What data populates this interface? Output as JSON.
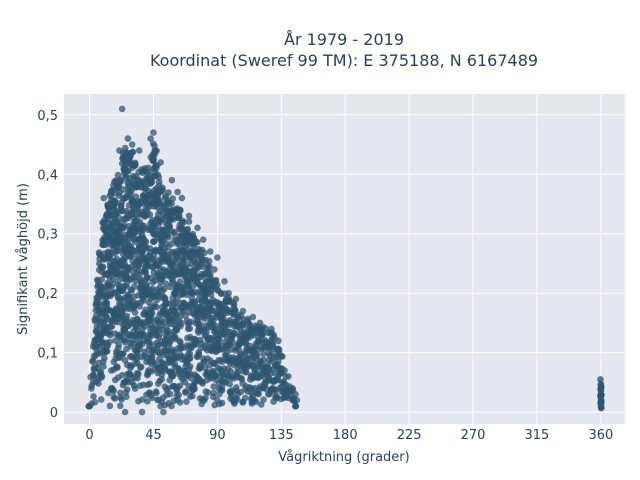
{
  "chart_data": {
    "type": "scatter",
    "title_line1": "År 1979 - 2019",
    "title_line2": "Koordinat (Sweref 99 TM): E 375188, N 6167489",
    "xlabel": "Vågriktning (grader)",
    "ylabel": "Signifikant våghöjd (m)",
    "xlim": [
      -18,
      377
    ],
    "ylim": [
      -0.02,
      0.535
    ],
    "x_ticks": [
      0,
      45,
      90,
      135,
      180,
      225,
      270,
      315,
      360
    ],
    "x_tick_labels": [
      "0",
      "45",
      "90",
      "135",
      "180",
      "225",
      "270",
      "315",
      "360"
    ],
    "y_ticks": [
      0,
      0.1,
      0.2,
      0.3,
      0.4,
      0.5
    ],
    "y_tick_labels": [
      "0",
      "0,1",
      "0,2",
      "0,3",
      "0,4",
      "0,5"
    ],
    "grid": true,
    "marker_color": "#2f5670",
    "plot_bg": "#e5e8f1",
    "envelope_note_points": [
      {
        "x": 0,
        "y": 0.01
      },
      {
        "x": 5,
        "y": 0.22
      },
      {
        "x": 10,
        "y": 0.33
      },
      {
        "x": 15,
        "y": 0.37
      },
      {
        "x": 20,
        "y": 0.41
      },
      {
        "x": 25,
        "y": 0.45
      },
      {
        "x": 30,
        "y": 0.44
      },
      {
        "x": 35,
        "y": 0.41
      },
      {
        "x": 40,
        "y": 0.41
      },
      {
        "x": 45,
        "y": 0.47
      },
      {
        "x": 50,
        "y": 0.39
      },
      {
        "x": 55,
        "y": 0.37
      },
      {
        "x": 60,
        "y": 0.36
      },
      {
        "x": 65,
        "y": 0.34
      },
      {
        "x": 70,
        "y": 0.32
      },
      {
        "x": 75,
        "y": 0.29
      },
      {
        "x": 80,
        "y": 0.27
      },
      {
        "x": 85,
        "y": 0.25
      },
      {
        "x": 90,
        "y": 0.22
      },
      {
        "x": 95,
        "y": 0.2
      },
      {
        "x": 100,
        "y": 0.19
      },
      {
        "x": 105,
        "y": 0.17
      },
      {
        "x": 110,
        "y": 0.16
      },
      {
        "x": 115,
        "y": 0.15
      },
      {
        "x": 120,
        "y": 0.15
      },
      {
        "x": 125,
        "y": 0.14
      },
      {
        "x": 130,
        "y": 0.13
      },
      {
        "x": 135,
        "y": 0.1
      },
      {
        "x": 140,
        "y": 0.05
      },
      {
        "x": 145,
        "y": 0.03
      }
    ],
    "outliers": [
      {
        "x": 23,
        "y": 0.51
      },
      {
        "x": 45,
        "y": 0.47
      },
      {
        "x": 27,
        "y": 0.46
      },
      {
        "x": 30,
        "y": 0.45
      },
      {
        "x": 43,
        "y": 0.46
      },
      {
        "x": 21,
        "y": 0.44
      },
      {
        "x": 35,
        "y": 0.44
      },
      {
        "x": 47,
        "y": 0.41
      },
      {
        "x": 50,
        "y": 0.42
      },
      {
        "x": 58,
        "y": 0.39
      },
      {
        "x": 62,
        "y": 0.37
      },
      {
        "x": 65,
        "y": 0.36
      },
      {
        "x": 10,
        "y": 0.36
      },
      {
        "x": 70,
        "y": 0.33
      },
      {
        "x": 76,
        "y": 0.31
      },
      {
        "x": 80,
        "y": 0.29
      },
      {
        "x": 85,
        "y": 0.27
      },
      {
        "x": 88,
        "y": 0.24
      },
      {
        "x": 90,
        "y": 0.26
      },
      {
        "x": 95,
        "y": 0.22
      },
      {
        "x": 98,
        "y": 0.2
      },
      {
        "x": 103,
        "y": 0.19
      },
      {
        "x": 108,
        "y": 0.17
      },
      {
        "x": 115,
        "y": 0.16
      },
      {
        "x": 120,
        "y": 0.15
      },
      {
        "x": 128,
        "y": 0.14
      },
      {
        "x": 133,
        "y": 0.12
      },
      {
        "x": 140,
        "y": 0.06
      },
      {
        "x": 143,
        "y": 0.04
      },
      {
        "x": 145,
        "y": 0.03
      },
      {
        "x": 146,
        "y": 0.02
      },
      {
        "x": 25,
        "y": 0
      },
      {
        "x": 37,
        "y": 0
      },
      {
        "x": 52,
        "y": 0
      },
      {
        "x": 50,
        "y": 0.01
      }
    ],
    "cluster_360": {
      "x": 360,
      "ymin": 0.005,
      "ymax": 0.06
    }
  }
}
